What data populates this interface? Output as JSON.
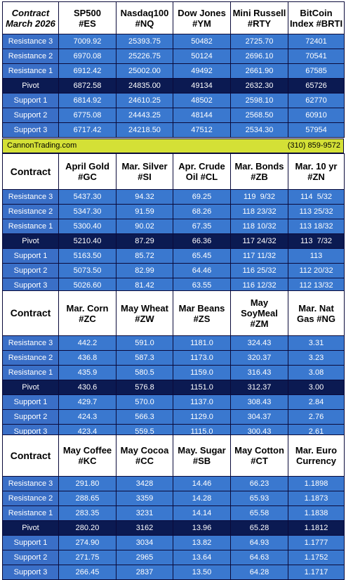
{
  "banner": {
    "site": "CannonTrading.com",
    "phone": "(310) 859-9572"
  },
  "level_labels": [
    "Resistance 3",
    "Resistance 2",
    "Resistance 1",
    "Pivot",
    "Support 1",
    "Support 2",
    "Support 3"
  ],
  "blocks": [
    {
      "corner": [
        "Contract",
        "March 2026"
      ],
      "headers": [
        [
          "SP500",
          "#ES"
        ],
        [
          "Nasdaq100",
          "#NQ"
        ],
        [
          "Dow Jones",
          "#YM"
        ],
        [
          "Mini Russell",
          "#RTY"
        ],
        [
          "BitCoin",
          "Index #BRTI"
        ]
      ],
      "rows": [
        [
          "7009.92",
          "25393.75",
          "50482",
          "2725.70",
          "72401"
        ],
        [
          "6970.08",
          "25226.75",
          "50124",
          "2696.10",
          "70541"
        ],
        [
          "6912.42",
          "25002.00",
          "49492",
          "2661.90",
          "67585"
        ],
        [
          "6872.58",
          "24835.00",
          "49134",
          "2632.30",
          "65726"
        ],
        [
          "6814.92",
          "24610.25",
          "48502",
          "2598.10",
          "62770"
        ],
        [
          "6775.08",
          "24443.25",
          "48144",
          "2568.50",
          "60910"
        ],
        [
          "6717.42",
          "24218.50",
          "47512",
          "2534.30",
          "57954"
        ]
      ]
    },
    {
      "corner": [
        "Contract"
      ],
      "headers": [
        [
          "April Gold",
          "#GC"
        ],
        [
          "Mar. Silver",
          "#SI"
        ],
        [
          "Apr. Crude",
          "Oil #CL"
        ],
        [
          "Mar. Bonds",
          "#ZB"
        ],
        [
          "Mar. 10 yr",
          "#ZN"
        ]
      ],
      "rows": [
        [
          "5437.30",
          "94.32",
          "69.25",
          "119  9/32",
          "114  5/32"
        ],
        [
          "5347.30",
          "91.59",
          "68.26",
          "118 23/32",
          "113 25/32"
        ],
        [
          "5300.40",
          "90.02",
          "67.35",
          "118 10/32",
          "113 18/32"
        ],
        [
          "5210.40",
          "87.29",
          "66.36",
          "117 24/32",
          "113  7/32"
        ],
        [
          "5163.50",
          "85.72",
          "65.45",
          "117 11/32",
          "113"
        ],
        [
          "5073.50",
          "82.99",
          "64.46",
          "116 25/32",
          "112 20/32"
        ],
        [
          "5026.60",
          "81.42",
          "63.55",
          "116 12/32",
          "112 13/32"
        ]
      ]
    },
    {
      "corner": [
        "Contract"
      ],
      "headers": [
        [
          "Mar. Corn",
          "#ZC"
        ],
        [
          "May  Wheat",
          "#ZW"
        ],
        [
          "Mar Beans",
          "#ZS"
        ],
        [
          "May",
          "SoyMeal",
          "#ZM"
        ],
        [
          "Mar. Nat",
          "Gas #NG"
        ]
      ],
      "rows": [
        [
          "442.2",
          "591.0",
          "1181.0",
          "324.43",
          "3.31"
        ],
        [
          "436.8",
          "587.3",
          "1173.0",
          "320.37",
          "3.23"
        ],
        [
          "435.9",
          "580.5",
          "1159.0",
          "316.43",
          "3.08"
        ],
        [
          "430.6",
          "576.8",
          "1151.0",
          "312.37",
          "3.00"
        ],
        [
          "429.7",
          "570.0",
          "1137.0",
          "308.43",
          "2.84"
        ],
        [
          "424.3",
          "566.3",
          "1129.0",
          "304.37",
          "2.76"
        ],
        [
          "423.4",
          "559.5",
          "1115.0",
          "300.43",
          "2.61"
        ]
      ]
    },
    {
      "corner": [
        "Contract"
      ],
      "headers": [
        [
          "May Coffee",
          "#KC"
        ],
        [
          "May Cocoa",
          "#CC"
        ],
        [
          "May. Sugar",
          "#SB"
        ],
        [
          "May Cotton",
          "#CT"
        ],
        [
          "Mar. Euro",
          "Currency"
        ]
      ],
      "rows": [
        [
          "291.80",
          "3428",
          "14.46",
          "66.23",
          "1.1898"
        ],
        [
          "288.65",
          "3359",
          "14.28",
          "65.93",
          "1.1873"
        ],
        [
          "283.35",
          "3231",
          "14.14",
          "65.58",
          "1.1838"
        ],
        [
          "280.20",
          "3162",
          "13.96",
          "65.28",
          "1.1812"
        ],
        [
          "274.90",
          "3034",
          "13.82",
          "64.93",
          "1.1777"
        ],
        [
          "271.75",
          "2965",
          "13.64",
          "64.63",
          "1.1752"
        ],
        [
          "266.45",
          "2837",
          "13.50",
          "64.28",
          "1.1717"
        ]
      ]
    }
  ]
}
